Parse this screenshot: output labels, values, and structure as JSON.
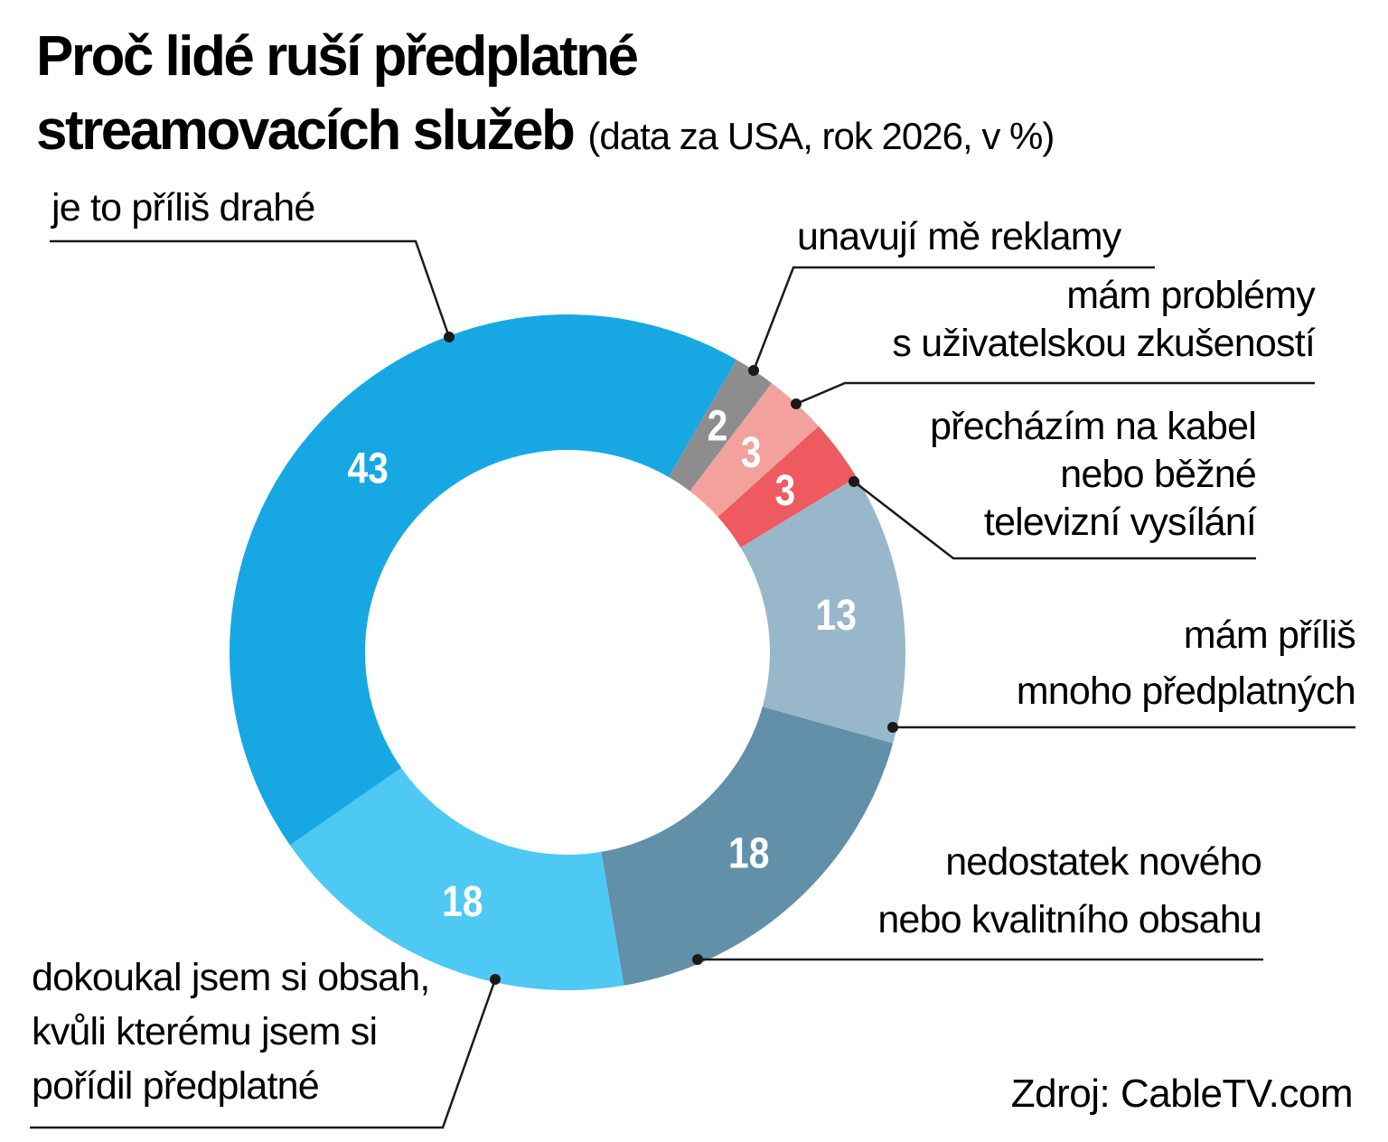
{
  "header": {
    "title_line1": "Proč lidé ruší předplatné",
    "title_line2": "streamovacích služeb",
    "subtitle": "(data za USA, rok 2026, v %)"
  },
  "source": {
    "text": "Zdroj: CableTV.com"
  },
  "colors": {
    "background": "#ffffff",
    "text": "#000000",
    "connector_line": "#1a1a1a",
    "value_label": "#ffffff"
  },
  "chart_data": {
    "type": "pie",
    "donut": true,
    "title": "Proč lidé ruší předplatné streamovacích služeb",
    "subtitle": "data za USA, rok 2026, v %",
    "unit": "%",
    "direction": "clockwise",
    "start_angle_deg_from_12": 30,
    "legend_position": "callout-labels",
    "slices": [
      {
        "id": "ads",
        "value": 2,
        "color": "#8d8d8f",
        "label": "unavují mě reklamy",
        "label_lines": [
          "unavují mě reklamy"
        ]
      },
      {
        "id": "ux",
        "value": 3,
        "color": "#f2a19d",
        "label": "mám problémy s uživatelskou zkušeností",
        "label_lines": [
          "mám problémy",
          "s uživatelskou zkušeností"
        ]
      },
      {
        "id": "cable",
        "value": 3,
        "color": "#ee5a60",
        "label": "přecházím na kabel nebo běžné televizní vysílání",
        "label_lines": [
          "přecházím na kabel",
          "nebo běžné",
          "televizní vysílání"
        ]
      },
      {
        "id": "toomany",
        "value": 13,
        "color": "#99b7ca",
        "label": "mám příliš mnoho předplatných",
        "label_lines": [
          "mám příliš",
          "mnoho předplatných"
        ]
      },
      {
        "id": "content",
        "value": 18,
        "color": "#6190a8",
        "label": "nedostatek nového nebo kvalitního obsahu",
        "label_lines": [
          "nedostatek nového",
          "nebo kvalitního obsahu"
        ]
      },
      {
        "id": "finished",
        "value": 18,
        "color": "#4dc9f4",
        "label": "dokoukal jsem si obsah, kvůli kterému jsem si pořídil předplatné",
        "label_lines": [
          "dokoukal jsem si obsah,",
          "kvůli kterému jsem si",
          "pořídil předplatné"
        ]
      },
      {
        "id": "expensive",
        "value": 43,
        "color": "#17a8e3",
        "label": "je to příliš drahé",
        "label_lines": [
          "je to příliš drahé"
        ]
      }
    ]
  }
}
